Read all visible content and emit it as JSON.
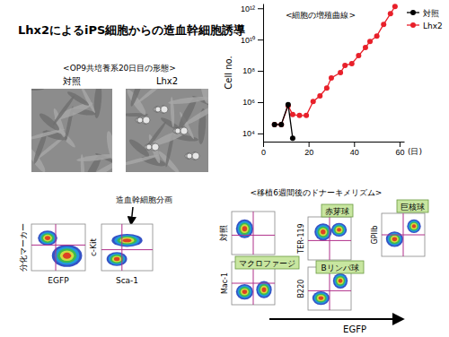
{
  "title": "Lhx2によるiPS細胞からの造血幹細胞誘導",
  "morphology": {
    "title": "<OP9共培養系20日目の形態>",
    "labels": [
      "対照",
      "Lhx2"
    ]
  },
  "hsc_flow": {
    "annotation": "造血幹細胞分画",
    "plots": [
      {
        "x_label": "EGFP",
        "y_label": "分化マーカー"
      },
      {
        "x_label": "Sca-1",
        "y_label": "c-Kit"
      }
    ]
  },
  "chart_data": {
    "type": "line",
    "title": "<細胞の増殖曲線>",
    "y_label": "Cell no.",
    "x_label": "(日)",
    "x": [
      5,
      8,
      11,
      13,
      16,
      19,
      22,
      25,
      28,
      30,
      34,
      36,
      39,
      42,
      45,
      47,
      50,
      53,
      56,
      58
    ],
    "series": [
      {
        "name": "対照",
        "color": "#000000",
        "marker": "circle",
        "values": [
          37000,
          37000,
          700000,
          5000,
          null,
          null,
          null,
          null,
          null,
          null,
          null,
          null,
          null,
          null,
          null,
          null,
          null,
          null,
          null,
          null
        ]
      },
      {
        "name": "Lhx2",
        "color": "#e8202a",
        "marker": "circle",
        "values": [
          37000,
          37000,
          590000,
          160000,
          140000,
          140000,
          1100000,
          2500000,
          8000000,
          35000000,
          77000000,
          220000000,
          290000000,
          940000000,
          3100000000,
          7700000000,
          17000000000,
          94000000000,
          450000000000,
          1300000000000
        ]
      }
    ],
    "xlim": [
      0,
      62
    ],
    "xticks": [
      0,
      20,
      40,
      60
    ],
    "ylim": [
      3000,
      2000000000000
    ],
    "yticks": [
      {
        "value": 10000,
        "label": "10⁴"
      },
      {
        "value": 1000000,
        "label": "10⁶"
      },
      {
        "value": 100000000,
        "label": "10⁸"
      },
      {
        "value": 10000000000,
        "label": "10¹⁰"
      },
      {
        "value": 1000000000000,
        "label": "10¹²"
      }
    ],
    "log": "y",
    "grid": false,
    "legend": "upper right"
  },
  "chimerism": {
    "title": "<移植6週間後のドナーキメリズム>",
    "x_label": "EGFP",
    "panels": [
      {
        "row_label": "対照"
      },
      {
        "y_label": "Mac-1",
        "cell_type": "マクロファージ"
      },
      {
        "y_label": "TER-119",
        "cell_type": "赤芽球"
      },
      {
        "y_label": "B220",
        "cell_type": "Bリンパ球"
      },
      {
        "y_label": "GPIIb",
        "cell_type": "巨核球"
      }
    ]
  }
}
